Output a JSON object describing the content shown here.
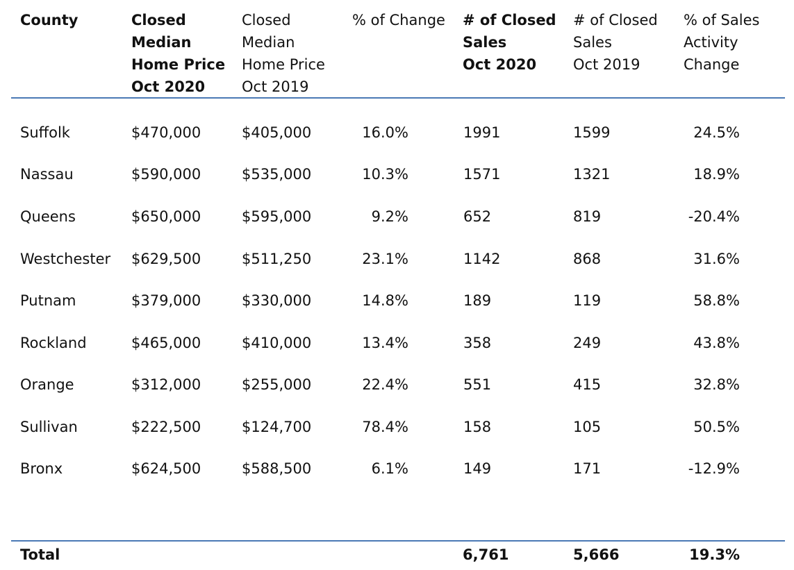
{
  "headers": {
    "county": [
      "County"
    ],
    "median_2020": [
      "Closed",
      "Median",
      "Home Price",
      "Oct 2020"
    ],
    "median_2019": [
      "Closed",
      "Median",
      "Home Price",
      "Oct 2019"
    ],
    "pct_change": [
      "% of Change"
    ],
    "sales_2020": [
      "# of Closed",
      "Sales",
      "Oct 2020"
    ],
    "sales_2019": [
      "# of Closed",
      "Sales",
      "Oct 2019"
    ],
    "sales_change": [
      "% of Sales",
      "Activity",
      "Change"
    ]
  },
  "rows": [
    {
      "county": "Suffolk",
      "median_2020": "$470,000",
      "median_2019": "$405,000",
      "pct_change": "16.0%",
      "sales_2020": "1991",
      "sales_2019": "1599",
      "sales_change": "24.5%"
    },
    {
      "county": "Nassau",
      "median_2020": "$590,000",
      "median_2019": "$535,000",
      "pct_change": "10.3%",
      "sales_2020": "1571",
      "sales_2019": "1321",
      "sales_change": "18.9%"
    },
    {
      "county": "Queens",
      "median_2020": "$650,000",
      "median_2019": "$595,000",
      "pct_change": "9.2%",
      "sales_2020": "652",
      "sales_2019": "819",
      "sales_change": "-20.4%"
    },
    {
      "county": "Westchester",
      "median_2020": "$629,500",
      "median_2019": "$511,250",
      "pct_change": "23.1%",
      "sales_2020": "1142",
      "sales_2019": "868",
      "sales_change": "31.6%"
    },
    {
      "county": "Putnam",
      "median_2020": "$379,000",
      "median_2019": "$330,000",
      "pct_change": "14.8%",
      "sales_2020": "189",
      "sales_2019": "119",
      "sales_change": "58.8%"
    },
    {
      "county": "Rockland",
      "median_2020": "$465,000",
      "median_2019": "$410,000",
      "pct_change": "13.4%",
      "sales_2020": "358",
      "sales_2019": "249",
      "sales_change": "43.8%"
    },
    {
      "county": "Orange",
      "median_2020": "$312,000",
      "median_2019": "$255,000",
      "pct_change": "22.4%",
      "sales_2020": "551",
      "sales_2019": "415",
      "sales_change": "32.8%"
    },
    {
      "county": "Sullivan",
      "median_2020": "$222,500",
      "median_2019": "$124,700",
      "pct_change": "78.4%",
      "sales_2020": "158",
      "sales_2019": "105",
      "sales_change": "50.5%"
    },
    {
      "county": "Bronx",
      "median_2020": "$624,500",
      "median_2019": "$588,500",
      "pct_change": "6.1%",
      "sales_2020": "149",
      "sales_2019": "171",
      "sales_change": "-12.9%"
    }
  ],
  "total": {
    "label": "Total",
    "sales_2020": "6,761",
    "sales_2019": "5,666",
    "sales_change": "19.3%"
  },
  "colors": {
    "rule": "#4a79b5",
    "text": "#111111"
  }
}
